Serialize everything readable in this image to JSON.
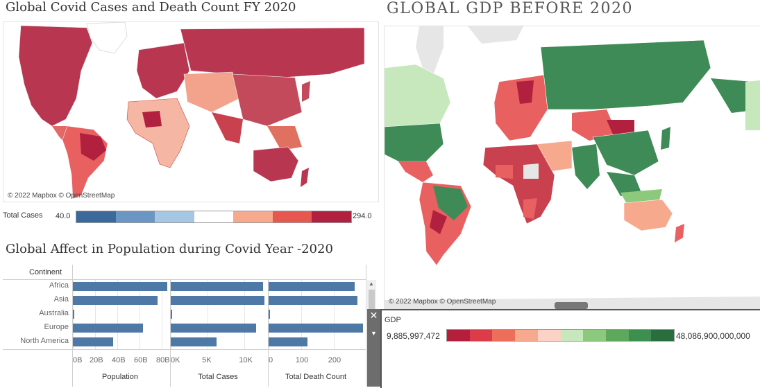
{
  "left_map": {
    "title": "Global Covid Cases and Death Count FY 2020",
    "attribution": "© 2022 Mapbox © OpenStreetMap",
    "legend": {
      "label": "Total Cases",
      "min": "40.0",
      "max": "294.0",
      "colors": [
        "#3b6a9a",
        "#6b96c3",
        "#a6c7e3",
        "#ffffff",
        "#f7a98d",
        "#e8574f",
        "#b2203f"
      ]
    }
  },
  "right_map": {
    "title": "GLOBAL GDP BEFORE 2020",
    "attribution": "© 2022 Mapbox © OpenStreetMap",
    "legend": {
      "label": "GDP",
      "min": "9,885,997,472",
      "max": "48,086,900,000,000",
      "colors": [
        "#b41f3c",
        "#dc3c4a",
        "#ee6e5c",
        "#f7a98d",
        "#fbd2c6",
        "#c7e7bd",
        "#8cc97c",
        "#5ea85e",
        "#3e8f4f",
        "#2a6e3f"
      ]
    }
  },
  "bar_chart": {
    "title": "Global Affect in Population during Covid Year -2020",
    "column_header": "Continent",
    "chart_data": [
      {
        "type": "bar",
        "title": "Population",
        "categories": [
          "Africa",
          "Asia",
          "Australia",
          "Europe",
          "North America"
        ],
        "values": [
          85,
          76,
          0.5,
          63,
          36
        ],
        "unit": "B",
        "xlim": [
          0,
          85
        ],
        "tick_labels": [
          "0B",
          "20B",
          "40B",
          "60B",
          "80B"
        ],
        "tick_values": [
          0,
          20,
          40,
          60,
          80
        ]
      },
      {
        "type": "bar",
        "title": "Total Cases",
        "categories": [
          "Africa",
          "Asia",
          "Australia",
          "Europe",
          "North America"
        ],
        "values": [
          12500,
          12700,
          150,
          11600,
          6200
        ],
        "xlim": [
          0,
          12800
        ],
        "tick_labels": [
          "0K",
          "5K",
          "10K"
        ],
        "tick_values": [
          0,
          5000,
          10000
        ]
      },
      {
        "type": "bar",
        "title": "Total Death Count",
        "categories": [
          "Africa",
          "Asia",
          "Australia",
          "Europe",
          "North America"
        ],
        "values": [
          265,
          273,
          3,
          289,
          120
        ],
        "xlim": [
          0,
          290
        ],
        "tick_labels": [
          "0",
          "100",
          "200"
        ],
        "tick_values": [
          0,
          100,
          200
        ]
      }
    ]
  }
}
